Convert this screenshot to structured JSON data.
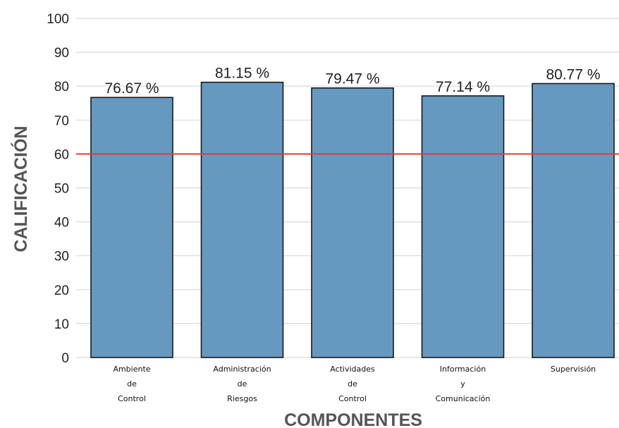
{
  "chart_data": {
    "type": "bar",
    "categories": [
      [
        "Ambiente",
        "de",
        "Control"
      ],
      [
        "Administración",
        "de",
        "Riesgos"
      ],
      [
        "Actividades",
        "de",
        "Control"
      ],
      [
        "Información",
        "y",
        "Comunicación"
      ],
      [
        "Supervisión"
      ]
    ],
    "values": [
      76.67,
      81.15,
      79.47,
      77.14,
      80.77
    ],
    "data_labels": [
      "76.67 %",
      "81.15 %",
      "79.47 %",
      "77.14 %",
      "80.77 %"
    ],
    "xlabel": "COMPONENTES",
    "ylabel": "CALIFICACIÓN",
    "ylim": [
      0,
      100
    ],
    "yticks": [
      0,
      10,
      20,
      30,
      40,
      50,
      60,
      70,
      80,
      90,
      100
    ],
    "reference_line": 60,
    "grid": true,
    "colors": {
      "bar_fill": "#6699bf",
      "bar_stroke": "#1a1a1a",
      "reference_line": "#e03c3c",
      "grid": "#d9d9d9"
    }
  }
}
